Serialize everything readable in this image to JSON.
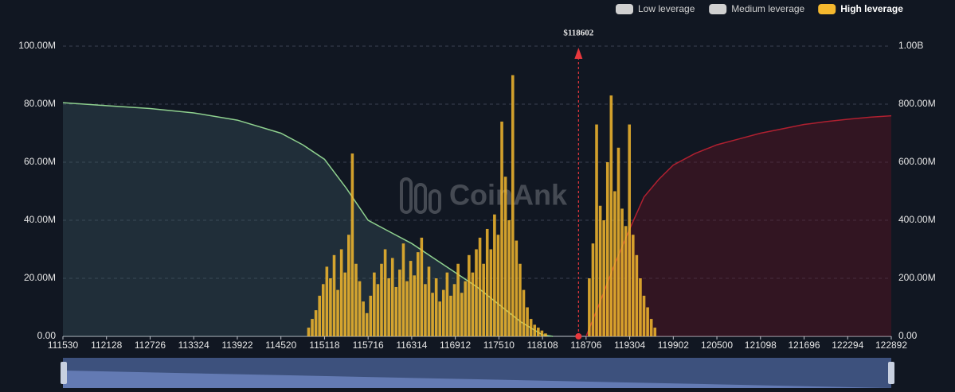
{
  "chart_data": {
    "type": "bar",
    "watermark": "CoinAnk",
    "xlim": [
      111530,
      122892
    ],
    "xticks": [
      111530,
      112128,
      112726,
      113324,
      113922,
      114520,
      115118,
      115716,
      116314,
      116912,
      117510,
      118108,
      118706,
      119304,
      119902,
      120500,
      121098,
      121696,
      122294,
      122892
    ],
    "ylim": [
      0,
      100000000
    ],
    "yticks": [
      {
        "value": 0,
        "label": "0.00"
      },
      {
        "value": 20000000,
        "label": "20.00M"
      },
      {
        "value": 40000000,
        "label": "40.00M"
      },
      {
        "value": 60000000,
        "label": "60.00M"
      },
      {
        "value": 80000000,
        "label": "80.00M"
      },
      {
        "value": 100000000,
        "label": "100.00M"
      }
    ],
    "y2lim": [
      0,
      1000000000
    ],
    "y2ticks": [
      {
        "value": 0,
        "label": "0.00"
      },
      {
        "value": 200000000,
        "label": "200.00M"
      },
      {
        "value": 400000000,
        "label": "400.00M"
      },
      {
        "value": 600000000,
        "label": "600.00M"
      },
      {
        "value": 800000000,
        "label": "800.00M"
      },
      {
        "value": 1000000000,
        "label": "1.00B"
      }
    ],
    "grid": true,
    "legend": "top-right",
    "annotation": {
      "text": "$118602",
      "x": 118602,
      "color": "#e8383d"
    },
    "series": [
      {
        "name": "Low leverage",
        "color": "#d0d0d0",
        "visible": false
      },
      {
        "name": "Medium leverage",
        "color": "#d0d0d0",
        "visible": false
      },
      {
        "name": "High leverage",
        "color": "#f5b82e",
        "visible": true,
        "x": [
          114900,
          114950,
          115000,
          115050,
          115100,
          115150,
          115200,
          115250,
          115300,
          115350,
          115400,
          115450,
          115500,
          115550,
          115600,
          115650,
          115700,
          115750,
          115800,
          115850,
          115900,
          115950,
          116000,
          116050,
          116100,
          116150,
          116200,
          116250,
          116300,
          116350,
          116400,
          116450,
          116500,
          116550,
          116600,
          116650,
          116700,
          116750,
          116800,
          116850,
          116900,
          116950,
          117000,
          117050,
          117100,
          117150,
          117200,
          117250,
          117300,
          117350,
          117400,
          117450,
          117500,
          117550,
          117600,
          117650,
          117700,
          117750,
          117800,
          117850,
          117900,
          117950,
          118000,
          118050,
          118100,
          118150,
          118750,
          118800,
          118850,
          118900,
          118950,
          119000,
          119050,
          119100,
          119150,
          119200,
          119250,
          119300,
          119350,
          119400,
          119450,
          119500,
          119550,
          119600,
          119650
        ],
        "values": [
          3000000,
          6000000,
          9000000,
          14000000,
          18000000,
          24000000,
          20000000,
          28000000,
          16000000,
          30000000,
          22000000,
          35000000,
          63000000,
          25000000,
          19000000,
          12000000,
          8000000,
          14000000,
          22000000,
          18000000,
          25000000,
          30000000,
          20000000,
          27000000,
          17000000,
          23000000,
          32000000,
          19000000,
          26000000,
          21000000,
          29000000,
          34000000,
          18000000,
          24000000,
          15000000,
          20000000,
          12000000,
          16000000,
          22000000,
          14000000,
          18000000,
          25000000,
          15000000,
          19000000,
          28000000,
          22000000,
          30000000,
          34000000,
          25000000,
          37000000,
          30000000,
          42000000,
          35000000,
          74000000,
          55000000,
          40000000,
          90000000,
          33000000,
          25000000,
          16000000,
          10000000,
          6000000,
          4000000,
          3000000,
          2000000,
          1000000,
          20000000,
          32000000,
          73000000,
          45000000,
          40000000,
          60000000,
          83000000,
          50000000,
          65000000,
          44000000,
          38000000,
          73000000,
          35000000,
          28000000,
          20000000,
          14000000,
          10000000,
          6000000,
          3000000
        ]
      }
    ],
    "lines": [
      {
        "color": "#8fd18f",
        "fill": "rgba(60,90,100,0.35)",
        "axis": "y2",
        "x": [
          111530,
          112128,
          112726,
          113324,
          113922,
          114520,
          114820,
          115118,
          115418,
          115716,
          116014,
          116314,
          116612,
          116912,
          117210,
          117510,
          117810,
          118108,
          118250
        ],
        "values": [
          805000000,
          795000000,
          785000000,
          770000000,
          745000000,
          700000000,
          660000000,
          610000000,
          510000000,
          400000000,
          360000000,
          320000000,
          270000000,
          220000000,
          170000000,
          110000000,
          50000000,
          5000000,
          0
        ]
      },
      {
        "color": "#b02030",
        "fill": "rgba(90,20,35,0.45)",
        "axis": "y2",
        "x": [
          118706,
          118900,
          119100,
          119304,
          119500,
          119700,
          119902,
          120200,
          120500,
          120800,
          121098,
          121400,
          121696,
          122000,
          122294,
          122600,
          122892
        ],
        "values": [
          0,
          120000000,
          250000000,
          370000000,
          480000000,
          540000000,
          590000000,
          630000000,
          660000000,
          680000000,
          700000000,
          715000000,
          730000000,
          740000000,
          748000000,
          755000000,
          760000000
        ]
      }
    ]
  }
}
